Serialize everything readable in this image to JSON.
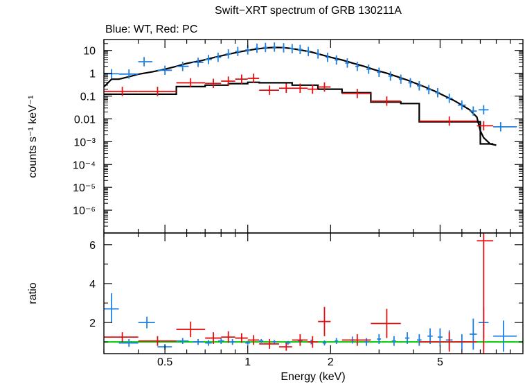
{
  "title": "Swift−XRT spectrum of GRB 130211A",
  "subtitle": "Blue: WT, Red: PC",
  "colors": {
    "wt": "#1f7fe0",
    "pc": "#e01010",
    "model": "#000000",
    "unity": "#00cc00"
  },
  "chart_data": [
    {
      "type": "scatter",
      "panel": "spectrum",
      "xscale": "log",
      "yscale": "log",
      "xlim": [
        0.3,
        10
      ],
      "ylim": [
        1e-07,
        30
      ],
      "ylabel": "counts s⁻¹ keV⁻¹",
      "yticks": [
        {
          "value": 10,
          "label": "10"
        },
        {
          "value": 1,
          "label": "1"
        },
        {
          "value": 0.1,
          "label": "0.1"
        },
        {
          "value": 0.01,
          "label": "0.01"
        },
        {
          "value": 0.001,
          "label": "10⁻³"
        },
        {
          "value": 0.0001,
          "label": "10⁻⁴"
        },
        {
          "value": 1e-05,
          "label": "10⁻⁵"
        },
        {
          "value": 1e-06,
          "label": "10⁻⁶"
        }
      ],
      "series": [
        {
          "key": "wt",
          "points": [
            [
              0.32,
              0.95,
              0.3,
              0.34
            ],
            [
              0.37,
              0.92,
              0.34,
              0.4
            ],
            [
              0.42,
              3.2,
              0.4,
              0.45
            ],
            [
              0.5,
              1.35,
              0.47,
              0.53
            ],
            [
              0.58,
              2.0,
              0.55,
              0.61
            ],
            [
              0.66,
              3.0,
              0.63,
              0.69
            ],
            [
              0.72,
              4.0,
              0.7,
              0.74
            ],
            [
              0.78,
              5.0,
              0.76,
              0.8
            ],
            [
              0.85,
              7.0,
              0.83,
              0.87
            ],
            [
              0.92,
              9.0,
              0.9,
              0.94
            ],
            [
              1.0,
              10.5,
              0.98,
              1.02
            ],
            [
              1.08,
              12.5,
              1.06,
              1.1
            ],
            [
              1.16,
              13.5,
              1.14,
              1.18
            ],
            [
              1.25,
              14.0,
              1.23,
              1.27
            ],
            [
              1.35,
              13.0,
              1.33,
              1.37
            ],
            [
              1.45,
              12.0,
              1.42,
              1.48
            ],
            [
              1.55,
              11.0,
              1.52,
              1.58
            ],
            [
              1.66,
              9.0,
              1.63,
              1.69
            ],
            [
              1.8,
              7.0,
              1.77,
              1.83
            ],
            [
              1.95,
              5.0,
              1.92,
              1.98
            ],
            [
              2.1,
              3.8,
              2.07,
              2.13
            ],
            [
              2.3,
              2.8,
              2.26,
              2.34
            ],
            [
              2.5,
              2.0,
              2.46,
              2.54
            ],
            [
              2.75,
              1.5,
              2.7,
              2.8
            ],
            [
              3.0,
              1.1,
              2.95,
              3.05
            ],
            [
              3.3,
              0.75,
              3.24,
              3.36
            ],
            [
              3.6,
              0.55,
              3.54,
              3.66
            ],
            [
              3.9,
              0.38,
              3.83,
              3.97
            ],
            [
              4.2,
              0.28,
              4.12,
              4.28
            ],
            [
              4.55,
              0.19,
              4.45,
              4.65
            ],
            [
              4.9,
              0.14,
              4.8,
              5.0
            ],
            [
              5.4,
              0.08,
              5.25,
              5.55
            ],
            [
              6.0,
              0.04,
              5.8,
              6.2
            ],
            [
              6.6,
              0.022,
              6.4,
              6.8
            ],
            [
              7.2,
              0.025,
              6.9,
              7.5
            ],
            [
              8.3,
              0.0045,
              7.8,
              9.5
            ]
          ]
        },
        {
          "key": "pc",
          "points": [
            [
              0.35,
              0.16,
              0.3,
              0.4
            ],
            [
              0.47,
              0.16,
              0.4,
              0.55
            ],
            [
              0.62,
              0.38,
              0.55,
              0.7
            ],
            [
              0.75,
              0.36,
              0.7,
              0.8
            ],
            [
              0.85,
              0.45,
              0.8,
              0.9
            ],
            [
              0.95,
              0.55,
              0.9,
              1.0
            ],
            [
              1.05,
              0.6,
              1.0,
              1.1
            ],
            [
              1.2,
              0.18,
              1.1,
              1.3
            ],
            [
              1.38,
              0.22,
              1.3,
              1.45
            ],
            [
              1.55,
              0.22,
              1.45,
              1.65
            ],
            [
              1.72,
              0.2,
              1.65,
              1.8
            ],
            [
              1.9,
              0.25,
              1.8,
              2.0
            ],
            [
              2.5,
              0.13,
              2.2,
              2.8
            ],
            [
              3.2,
              0.06,
              2.8,
              3.6
            ],
            [
              5.4,
              0.008,
              4.2,
              6.8
            ],
            [
              7.2,
              0.005,
              6.8,
              7.8
            ]
          ]
        }
      ],
      "model_wt": [
        [
          0.3,
          0.25
        ],
        [
          0.32,
          0.55
        ],
        [
          0.34,
          0.55
        ],
        [
          0.37,
          0.7
        ],
        [
          0.4,
          0.9
        ],
        [
          0.45,
          1.15
        ],
        [
          0.5,
          1.5
        ],
        [
          0.55,
          2.0
        ],
        [
          0.6,
          2.7
        ],
        [
          0.68,
          3.6
        ],
        [
          0.76,
          5.0
        ],
        [
          0.85,
          6.8
        ],
        [
          0.95,
          9.0
        ],
        [
          1.05,
          11.0
        ],
        [
          1.15,
          12.8
        ],
        [
          1.25,
          13.5
        ],
        [
          1.35,
          13.2
        ],
        [
          1.45,
          12.0
        ],
        [
          1.55,
          10.5
        ],
        [
          1.7,
          8.5
        ],
        [
          1.85,
          6.5
        ],
        [
          2.0,
          5.0
        ],
        [
          2.2,
          3.8
        ],
        [
          2.4,
          2.8
        ],
        [
          2.65,
          2.0
        ],
        [
          2.9,
          1.4
        ],
        [
          3.2,
          1.0
        ],
        [
          3.5,
          0.7
        ],
        [
          3.8,
          0.5
        ],
        [
          4.1,
          0.35
        ],
        [
          4.4,
          0.25
        ],
        [
          4.8,
          0.16
        ],
        [
          5.2,
          0.1
        ],
        [
          5.6,
          0.065
        ],
        [
          6.0,
          0.04
        ],
        [
          6.4,
          0.025
        ],
        [
          6.8,
          0.012
        ],
        [
          7.0,
          0.003
        ],
        [
          7.2,
          0.0015
        ],
        [
          7.6,
          0.0008
        ],
        [
          8.0,
          0.0007
        ]
      ],
      "model_pc": [
        [
          0.3,
          0.12
        ],
        [
          0.4,
          0.12
        ],
        [
          0.4,
          0.12
        ],
        [
          0.55,
          0.12
        ],
        [
          0.55,
          0.26
        ],
        [
          0.7,
          0.26
        ],
        [
          0.7,
          0.3
        ],
        [
          0.85,
          0.3
        ],
        [
          0.85,
          0.35
        ],
        [
          1.0,
          0.35
        ],
        [
          1.0,
          0.4
        ],
        [
          1.1,
          0.4
        ],
        [
          1.1,
          0.38
        ],
        [
          1.45,
          0.38
        ],
        [
          1.45,
          0.3
        ],
        [
          1.8,
          0.3
        ],
        [
          1.8,
          0.2
        ],
        [
          2.2,
          0.2
        ],
        [
          2.2,
          0.14
        ],
        [
          2.8,
          0.14
        ],
        [
          2.8,
          0.055
        ],
        [
          3.6,
          0.055
        ],
        [
          3.6,
          0.047
        ],
        [
          4.2,
          0.047
        ],
        [
          4.2,
          0.0075
        ],
        [
          7.0,
          0.0075
        ],
        [
          7.0,
          0.0008
        ],
        [
          7.8,
          0.0008
        ]
      ]
    },
    {
      "type": "scatter",
      "panel": "ratio",
      "xscale": "log",
      "xlim": [
        0.3,
        10
      ],
      "ylim": [
        0.4,
        6.6
      ],
      "xlabel": "Energy (keV)",
      "ylabel": "ratio",
      "xticks": [
        {
          "value": 0.5,
          "label": "0.5"
        },
        {
          "value": 1,
          "label": "1"
        },
        {
          "value": 2,
          "label": "2"
        },
        {
          "value": 5,
          "label": "5"
        }
      ],
      "yticks": [
        {
          "value": 2,
          "label": "2"
        },
        {
          "value": 4,
          "label": "4"
        },
        {
          "value": 6,
          "label": "6"
        }
      ],
      "unity": 1,
      "series": [
        {
          "key": "wt",
          "points": [
            [
              0.32,
              2.7,
              0.3,
              0.34,
              2.0,
              3.5
            ],
            [
              0.37,
              0.95,
              0.34,
              0.4,
              0.75,
              1.15
            ],
            [
              0.43,
              2.0,
              0.4,
              0.46,
              1.7,
              2.3
            ],
            [
              0.5,
              0.75,
              0.47,
              0.53,
              0.6,
              0.9
            ],
            [
              0.58,
              1.05,
              0.55,
              0.61,
              0.9,
              1.2
            ],
            [
              0.66,
              1.0,
              0.63,
              0.69,
              0.85,
              1.15
            ],
            [
              0.72,
              0.95,
              0.7,
              0.74,
              0.8,
              1.1
            ],
            [
              0.8,
              1.05,
              0.78,
              0.82,
              0.9,
              1.2
            ],
            [
              0.88,
              1.0,
              0.86,
              0.9,
              0.85,
              1.15
            ],
            [
              1.0,
              0.95,
              0.98,
              1.02,
              0.85,
              1.05
            ],
            [
              1.12,
              1.05,
              1.1,
              1.14,
              0.95,
              1.15
            ],
            [
              1.25,
              1.0,
              1.23,
              1.27,
              0.9,
              1.1
            ],
            [
              1.4,
              0.95,
              1.37,
              1.43,
              0.85,
              1.05
            ],
            [
              1.55,
              1.05,
              1.52,
              1.58,
              0.95,
              1.15
            ],
            [
              1.7,
              1.0,
              1.67,
              1.73,
              0.88,
              1.12
            ],
            [
              1.9,
              0.95,
              1.87,
              1.93,
              0.82,
              1.08
            ],
            [
              2.1,
              1.05,
              2.07,
              2.13,
              0.9,
              1.2
            ],
            [
              2.4,
              1.1,
              2.36,
              2.44,
              0.92,
              1.28
            ],
            [
              2.7,
              1.0,
              2.65,
              2.75,
              0.8,
              1.2
            ],
            [
              3.0,
              1.15,
              2.95,
              3.05,
              0.9,
              1.4
            ],
            [
              3.4,
              1.05,
              3.34,
              3.46,
              0.8,
              1.3
            ],
            [
              3.8,
              1.2,
              3.73,
              3.87,
              0.9,
              1.5
            ],
            [
              4.2,
              1.1,
              4.12,
              4.28,
              0.8,
              1.4
            ],
            [
              4.6,
              1.3,
              4.5,
              4.7,
              0.9,
              1.7
            ],
            [
              5.0,
              1.25,
              4.9,
              5.1,
              0.8,
              1.7
            ],
            [
              5.4,
              1.1,
              5.25,
              5.55,
              0.6,
              1.6
            ],
            [
              6.0,
              1.0,
              5.8,
              6.2,
              0.6,
              1.4
            ],
            [
              6.6,
              1.4,
              6.4,
              6.8,
              0.6,
              2.2
            ],
            [
              7.2,
              2.0,
              6.9,
              7.5,
              1.2,
              2.8
            ],
            [
              8.5,
              1.3,
              7.8,
              9.5,
              0.5,
              2.1
            ]
          ]
        },
        {
          "key": "pc",
          "points": [
            [
              0.35,
              1.25,
              0.3,
              0.4,
              1.0,
              1.5
            ],
            [
              0.47,
              1.05,
              0.4,
              0.55,
              0.8,
              1.3
            ],
            [
              0.62,
              1.65,
              0.55,
              0.7,
              1.25,
              2.05
            ],
            [
              0.75,
              1.2,
              0.7,
              0.8,
              0.9,
              1.5
            ],
            [
              0.85,
              1.25,
              0.8,
              0.9,
              0.95,
              1.55
            ],
            [
              0.95,
              1.2,
              0.9,
              1.0,
              0.95,
              1.45
            ],
            [
              1.05,
              1.1,
              1.0,
              1.1,
              0.85,
              1.35
            ],
            [
              1.2,
              0.9,
              1.1,
              1.3,
              0.65,
              1.15
            ],
            [
              1.38,
              0.75,
              1.3,
              1.45,
              0.55,
              0.95
            ],
            [
              1.55,
              1.1,
              1.45,
              1.65,
              0.8,
              1.4
            ],
            [
              1.72,
              1.0,
              1.65,
              1.8,
              0.7,
              1.3
            ],
            [
              1.9,
              2.05,
              1.8,
              2.0,
              1.3,
              2.8
            ],
            [
              2.5,
              1.1,
              2.2,
              2.8,
              0.8,
              1.4
            ],
            [
              3.2,
              1.95,
              2.8,
              3.6,
              1.2,
              2.7
            ],
            [
              5.4,
              1.0,
              4.2,
              6.8,
              0.5,
              1.5
            ],
            [
              7.2,
              6.2,
              6.8,
              7.8,
              0.4,
              6.6
            ]
          ]
        }
      ]
    }
  ]
}
